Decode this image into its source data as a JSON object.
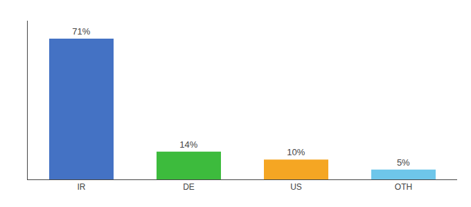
{
  "chart_data": {
    "type": "bar",
    "categories": [
      "IR",
      "DE",
      "US",
      "OTH"
    ],
    "values": [
      71,
      14,
      10,
      5
    ],
    "value_labels": [
      "71%",
      "14%",
      "10%",
      "5%"
    ],
    "data_labels": true,
    "colors": [
      "#4472c4",
      "#3dbb3d",
      "#f5a623",
      "#6ec6ea"
    ],
    "ylim": [
      0,
      80
    ],
    "tick_labels": "x",
    "grid": false
  }
}
